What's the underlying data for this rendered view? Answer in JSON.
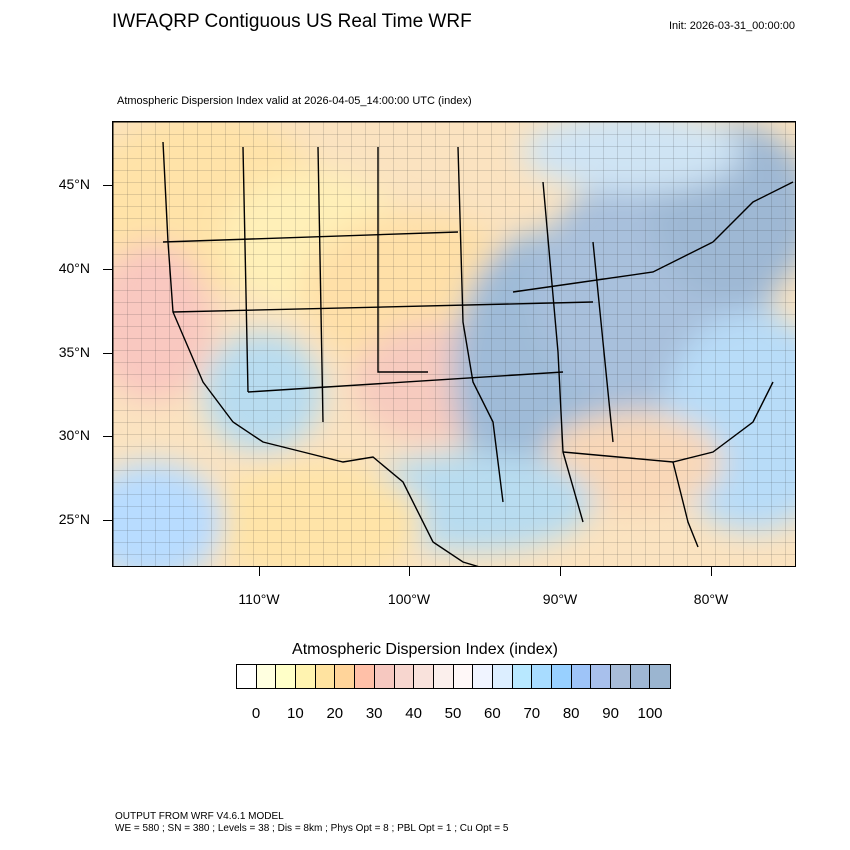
{
  "title": "IWFAQRP Contiguous US Real Time WRF",
  "init": "Init: 2026-03-31_00:00:00",
  "subtitle": "Atmospheric Dispersion Index valid at 2026-04-05_14:00:00 UTC   (index)",
  "latitude_labels": [
    "45°N",
    "40°N",
    "35°N",
    "30°N",
    "25°N"
  ],
  "longitude_labels": [
    "110°W",
    "100°W",
    "90°W",
    "80°W"
  ],
  "colorbar": {
    "title": "Atmospheric Dispersion Index  (index)",
    "labels": [
      "0",
      "10",
      "20",
      "30",
      "40",
      "50",
      "60",
      "70",
      "80",
      "90",
      "100"
    ],
    "colors": [
      "#ffffff",
      "#ffffe0",
      "#ffffc8",
      "#fff3b0",
      "#ffe3a0",
      "#ffd49a",
      "#ffc0a8",
      "#f6c8c0",
      "#f7d6cf",
      "#f9e2dc",
      "#fbefec",
      "#fff8f8",
      "#f0f4ff",
      "#dceeff",
      "#b8e8ff",
      "#a8dcff",
      "#98d0ff",
      "#9ec4f8",
      "#a8c0ec",
      "#a8bcd8",
      "#9fb7d4",
      "#9bb5d0"
    ]
  },
  "footer": {
    "line1": "OUTPUT FROM WRF V4.6.1 MODEL",
    "line2": "WE = 580 ; SN = 380 ; Levels = 38 ; Dis = 8km ; Phys Opt = 8 ; PBL Opt = 1 ; Cu Opt = 5"
  }
}
